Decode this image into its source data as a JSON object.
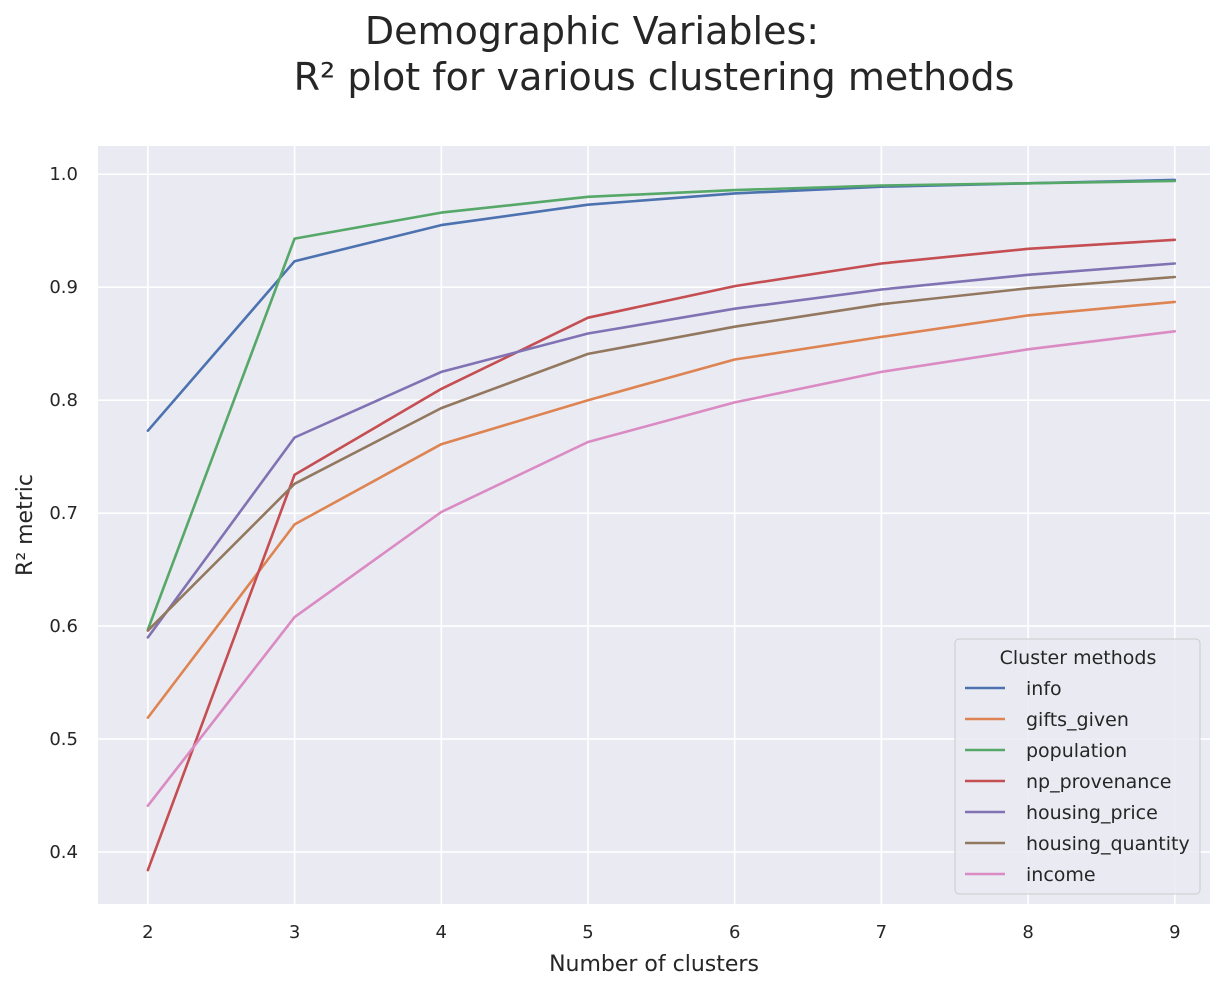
{
  "chart_data": {
    "type": "line",
    "title_lines": [
      "Demographic Variables:",
      "R² plot for various clustering methods"
    ],
    "xlabel": "Number of clusters",
    "ylabel": "R² metric",
    "x": [
      2,
      3,
      4,
      5,
      6,
      7,
      8,
      9
    ],
    "xlim": [
      1.66,
      9.24
    ],
    "ylim": [
      0.354,
      1.025
    ],
    "yticks": [
      0.4,
      0.5,
      0.6,
      0.7,
      0.8,
      0.9,
      1.0
    ],
    "ytick_labels": [
      "0.4",
      "0.5",
      "0.6",
      "0.7",
      "0.8",
      "0.9",
      "1.0"
    ],
    "xticks": [
      2,
      3,
      4,
      5,
      6,
      7,
      8,
      9
    ],
    "xtick_labels": [
      "2",
      "3",
      "4",
      "5",
      "6",
      "7",
      "8",
      "9"
    ],
    "grid": true,
    "legend": {
      "title": "Cluster methods",
      "placement": "lower-right"
    },
    "series": [
      {
        "name": "info",
        "color": "#4c72b0",
        "values": [
          0.773,
          0.923,
          0.955,
          0.973,
          0.983,
          0.989,
          0.992,
          0.995
        ]
      },
      {
        "name": "gifts_given",
        "color": "#dd8452",
        "values": [
          0.519,
          0.69,
          0.761,
          0.8,
          0.836,
          0.856,
          0.875,
          0.887
        ]
      },
      {
        "name": "population",
        "color": "#55a868",
        "values": [
          0.597,
          0.943,
          0.966,
          0.98,
          0.986,
          0.99,
          0.992,
          0.994
        ]
      },
      {
        "name": "np_provenance",
        "color": "#c44e52",
        "values": [
          0.384,
          0.734,
          0.81,
          0.873,
          0.901,
          0.921,
          0.934,
          0.942
        ]
      },
      {
        "name": "housing_price",
        "color": "#8172b3",
        "values": [
          0.59,
          0.767,
          0.825,
          0.859,
          0.881,
          0.898,
          0.911,
          0.921
        ]
      },
      {
        "name": "housing_quantity",
        "color": "#937860",
        "values": [
          0.596,
          0.726,
          0.793,
          0.841,
          0.865,
          0.885,
          0.899,
          0.909
        ]
      },
      {
        "name": "income",
        "color": "#da8bc3",
        "values": [
          0.441,
          0.608,
          0.701,
          0.763,
          0.798,
          0.825,
          0.845,
          0.861
        ]
      }
    ]
  }
}
